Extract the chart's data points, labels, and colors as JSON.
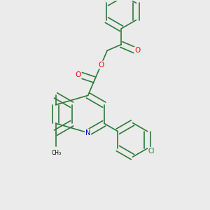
{
  "background_color": "#ebebeb",
  "bond_color": "#2d7a3a",
  "atom_colors": {
    "O": "#ff0000",
    "N": "#0000cc",
    "Cl": "#2d7a3a"
  },
  "line_width": 1.2,
  "figsize": [
    3.0,
    3.0
  ],
  "dpi": 100
}
